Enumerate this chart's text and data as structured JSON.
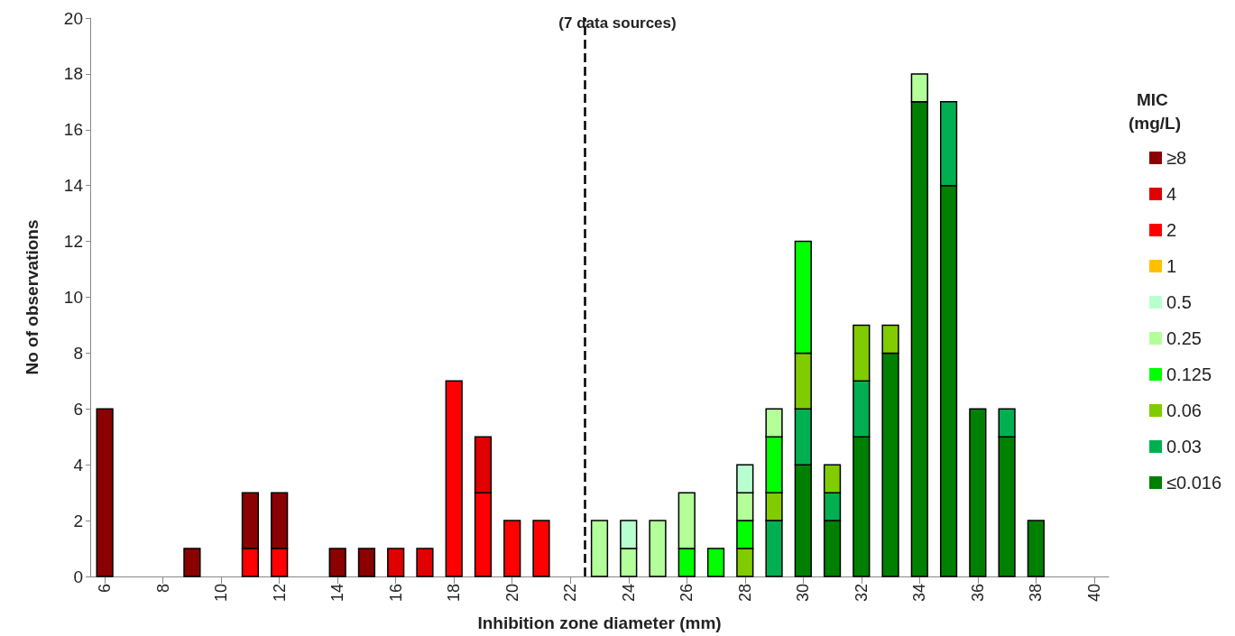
{
  "chart_data": {
    "type": "bar",
    "title": "(7 data sources)",
    "xlabel": "Inhibition zone diameter (mm)",
    "ylabel": "No of observations",
    "legend_title": "MIC (mg/L)",
    "x": [
      6,
      7,
      8,
      9,
      10,
      11,
      12,
      13,
      14,
      15,
      16,
      17,
      18,
      19,
      20,
      21,
      22,
      23,
      24,
      25,
      26,
      27,
      28,
      29,
      30,
      31,
      32,
      33,
      34,
      35,
      36,
      37,
      38
    ],
    "xlim": [
      5.5,
      40.5
    ],
    "xticks": [
      6,
      8,
      10,
      12,
      14,
      16,
      18,
      20,
      22,
      24,
      26,
      28,
      30,
      32,
      34,
      36,
      38,
      40
    ],
    "ylim": [
      0,
      20
    ],
    "yticks": [
      0,
      2,
      4,
      6,
      8,
      10,
      12,
      14,
      16,
      18,
      20
    ],
    "stacked": true,
    "grid": false,
    "legend": "right",
    "series": [
      {
        "name": "≤0.016",
        "color": "#008000",
        "values": [
          null,
          null,
          null,
          null,
          null,
          null,
          null,
          null,
          null,
          null,
          null,
          null,
          null,
          null,
          null,
          null,
          null,
          null,
          null,
          null,
          null,
          null,
          null,
          null,
          4,
          2,
          5,
          8,
          17,
          14,
          6,
          5,
          2
        ]
      },
      {
        "name": "0.03",
        "color": "#00b050",
        "values": [
          null,
          null,
          null,
          null,
          null,
          null,
          null,
          null,
          null,
          null,
          null,
          null,
          null,
          null,
          null,
          null,
          null,
          null,
          null,
          null,
          null,
          null,
          null,
          2,
          2,
          1,
          2,
          null,
          null,
          3,
          null,
          1,
          null
        ]
      },
      {
        "name": "0.06",
        "color": "#80cc00",
        "values": [
          null,
          null,
          null,
          null,
          null,
          null,
          null,
          null,
          null,
          null,
          null,
          null,
          null,
          null,
          null,
          null,
          null,
          null,
          null,
          null,
          null,
          null,
          1,
          1,
          2,
          1,
          2,
          1,
          null,
          null,
          null,
          null,
          null
        ]
      },
      {
        "name": "0.125",
        "color": "#00ff00",
        "values": [
          null,
          null,
          null,
          null,
          null,
          null,
          null,
          null,
          null,
          null,
          null,
          null,
          null,
          null,
          null,
          null,
          null,
          null,
          null,
          null,
          1,
          1,
          1,
          2,
          4,
          null,
          null,
          null,
          null,
          null,
          null,
          null,
          null
        ]
      },
      {
        "name": "0.25",
        "color": "#b3ff99",
        "values": [
          null,
          null,
          null,
          null,
          null,
          null,
          null,
          null,
          null,
          null,
          null,
          null,
          null,
          null,
          null,
          null,
          null,
          2,
          1,
          2,
          2,
          null,
          1,
          1,
          null,
          null,
          null,
          null,
          1,
          null,
          null,
          null,
          null
        ]
      },
      {
        "name": "0.5",
        "color": "#b8ffd0",
        "values": [
          null,
          null,
          null,
          null,
          null,
          null,
          null,
          null,
          null,
          null,
          null,
          null,
          null,
          null,
          null,
          null,
          null,
          null,
          1,
          null,
          null,
          null,
          1,
          null,
          null,
          null,
          null,
          null,
          null,
          null,
          null,
          null,
          null
        ]
      },
      {
        "name": "1",
        "color": "#ffc000",
        "values": [
          null,
          null,
          null,
          null,
          null,
          null,
          null,
          null,
          null,
          null,
          null,
          null,
          null,
          null,
          null,
          null,
          null,
          null,
          null,
          null,
          null,
          null,
          null,
          null,
          null,
          null,
          null,
          null,
          null,
          null,
          null,
          null,
          null
        ]
      },
      {
        "name": "2",
        "color": "#ff0000",
        "values": [
          null,
          null,
          null,
          null,
          null,
          1,
          1,
          null,
          null,
          null,
          null,
          null,
          7,
          3,
          2,
          2,
          null,
          null,
          null,
          null,
          null,
          null,
          null,
          null,
          null,
          null,
          null,
          null,
          null,
          null,
          null,
          null,
          null
        ]
      },
      {
        "name": "4",
        "color": "#e00000",
        "values": [
          null,
          null,
          null,
          null,
          null,
          null,
          null,
          null,
          null,
          null,
          1,
          1,
          null,
          2,
          null,
          null,
          null,
          null,
          null,
          null,
          null,
          null,
          null,
          null,
          null,
          null,
          null,
          null,
          null,
          null,
          null,
          null,
          null
        ]
      },
      {
        "name": "≥8",
        "color": "#8b0000",
        "values": [
          6,
          null,
          null,
          1,
          null,
          2,
          2,
          null,
          1,
          1,
          null,
          null,
          null,
          null,
          null,
          null,
          null,
          null,
          null,
          null,
          null,
          null,
          null,
          null,
          null,
          null,
          null,
          null,
          null,
          null,
          null,
          null,
          null
        ]
      }
    ],
    "ref_lines": [
      {
        "axis": "x",
        "value": 22.5,
        "color": "#000000",
        "line_style": "dashed"
      }
    ]
  }
}
